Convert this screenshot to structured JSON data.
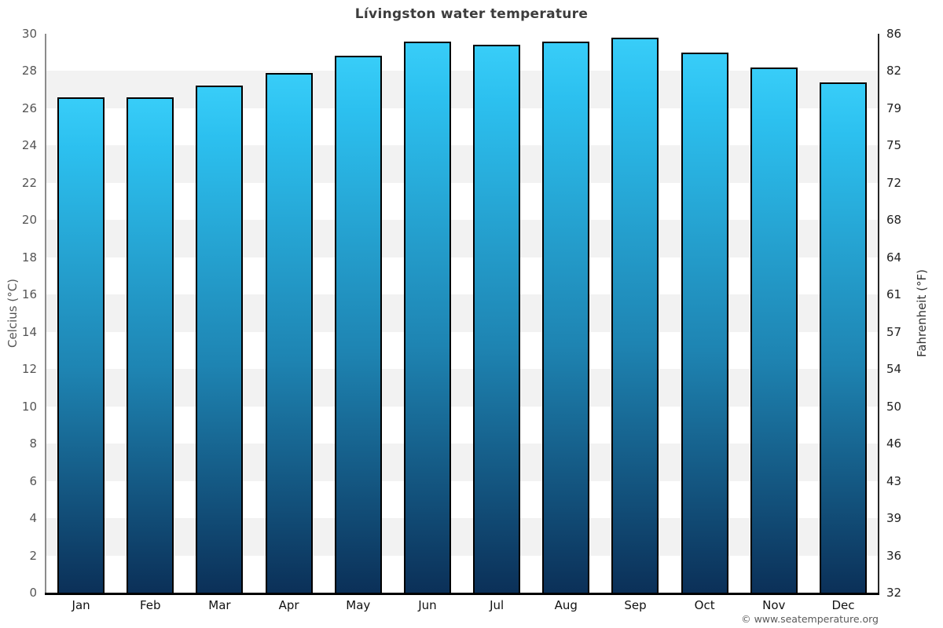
{
  "title": "Lívingston water temperature",
  "copyright": "© www.seatemperature.org",
  "chart_data": {
    "type": "bar",
    "title": "Lívingston water temperature",
    "categories": [
      "Jan",
      "Feb",
      "Mar",
      "Apr",
      "May",
      "Jun",
      "Jul",
      "Aug",
      "Sep",
      "Oct",
      "Nov",
      "Dec"
    ],
    "values": [
      26.6,
      26.6,
      27.2,
      27.9,
      28.8,
      29.6,
      29.4,
      29.6,
      29.8,
      29.0,
      28.2,
      27.4
    ],
    "unit": "°C",
    "ylabel_left": "Celcius (°C)",
    "ylabel_right": "Fahrenheit (°F)",
    "xlabel": "",
    "ylim": [
      0,
      30
    ],
    "ytick_step": 2,
    "yticks_left_top_to_bottom": [
      "30",
      "28",
      "26",
      "24",
      "22",
      "20",
      "18",
      "16",
      "14",
      "12",
      "10",
      "8",
      "6",
      "4",
      "2",
      "0"
    ],
    "yticks_right_top_to_bottom": [
      "86",
      "82",
      "79",
      "75",
      "72",
      "68",
      "64",
      "61",
      "57",
      "54",
      "50",
      "46",
      "43",
      "39",
      "36",
      "32"
    ],
    "legend": "none",
    "grid": "alternating-horizontal-bands",
    "band_count": 15,
    "colors": {
      "bar_gradient_top": "#38cdf8",
      "bar_gradient_bottom": "#0b3058",
      "bar_border": "#000000",
      "band_gray": "#f2f2f2",
      "band_white": "#ffffff",
      "title_text": "#3c3c3c",
      "left_axis_line": "#8c8c8c",
      "right_axis_line": "#262626",
      "bottom_axis_line": "#000000",
      "left_tick_text": "#555555",
      "right_tick_text": "#222222",
      "month_text": "#111111",
      "copyright_text": "#5a5a5a"
    }
  }
}
